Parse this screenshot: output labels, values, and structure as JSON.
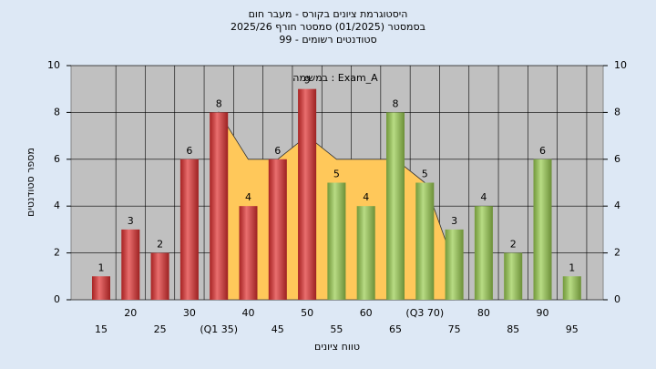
{
  "chart_data": {
    "type": "bar",
    "title": "היסטוגרמת ציונים בקורס - מעבר חום",
    "subtitle": "בסמסטר  (01/2025)  סמסטר חורף 2025/26",
    "subtitle2": "סטודנטים רשומים - 99",
    "annotation": "במשימה : Exam_A",
    "x_label": "טווח ציונים",
    "y_label": "מספר סטודנטים",
    "categories": [
      "15",
      "20",
      "25",
      "30",
      "(Q1 35)",
      "40",
      "45",
      "50",
      "55",
      "60",
      "65",
      "(Q3 70)",
      "75",
      "80",
      "85",
      "90",
      "95"
    ],
    "values": [
      1,
      3,
      2,
      6,
      8,
      4,
      6,
      9,
      5,
      4,
      8,
      5,
      3,
      4,
      2,
      6,
      1
    ],
    "colors": [
      "#e03030",
      "#e03030",
      "#e03030",
      "#e03030",
      "#e03030",
      "#e03030",
      "#e03030",
      "#e03030",
      "#9acd50",
      "#9acd50",
      "#9acd50",
      "#9acd50",
      "#9acd50",
      "#9acd50",
      "#9acd50",
      "#9acd50",
      "#9acd50"
    ],
    "area": {
      "color": "#ffc85a",
      "values": [
        null,
        null,
        null,
        null,
        8,
        6,
        6,
        7,
        6,
        6,
        6,
        5,
        1.5,
        null,
        null,
        null,
        null
      ]
    },
    "ylim": [
      0,
      10
    ],
    "yticks": [
      0,
      2,
      4,
      6,
      8,
      10
    ],
    "y2lim": [
      0,
      10
    ],
    "y2ticks": [
      0,
      2,
      4,
      6,
      8,
      10
    ],
    "grid": true
  }
}
